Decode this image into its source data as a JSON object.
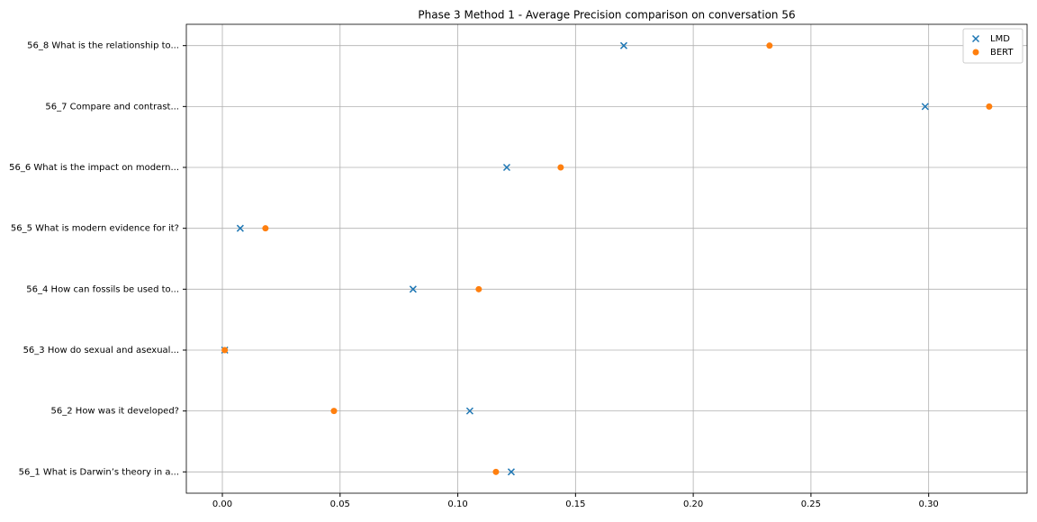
{
  "chart_data": {
    "type": "scatter",
    "title": "Phase 3 Method 1 - Average Precision comparison on conversation 56",
    "categories": [
      "56_1 What is Darwin’s theory in a...",
      "56_2 How was it developed?",
      "56_3 How do sexual and asexual...",
      "56_4 How can fossils be used to...",
      "56_5 What is modern evidence for it?",
      "56_6 What is the impact on modern...",
      "56_7 Compare and contrast...",
      "56_8 What is the relationship to..."
    ],
    "series": [
      {
        "name": "LMD",
        "color": "#1f77b4",
        "marker": "x",
        "values": [
          0.1227,
          0.1051,
          0.001,
          0.081,
          0.0076,
          0.1208,
          0.2985,
          0.1705
        ]
      },
      {
        "name": "BERT",
        "color": "#ff7f0e",
        "marker": "o",
        "values": [
          0.1162,
          0.0474,
          0.001,
          0.1089,
          0.0183,
          0.1437,
          0.3257,
          0.2324
        ]
      }
    ],
    "xlim": [
      -0.0153,
      0.3418
    ],
    "xticks": [
      {
        "value": 0,
        "label": "0.00"
      },
      0.05,
      {
        "value": 0.1,
        "label": "0.10"
      },
      0.15,
      {
        "value": 0.2,
        "label": "0.20"
      },
      0.25,
      {
        "value": 0.3,
        "label": "0.30"
      }
    ],
    "grid": true,
    "legend": "upper right"
  }
}
